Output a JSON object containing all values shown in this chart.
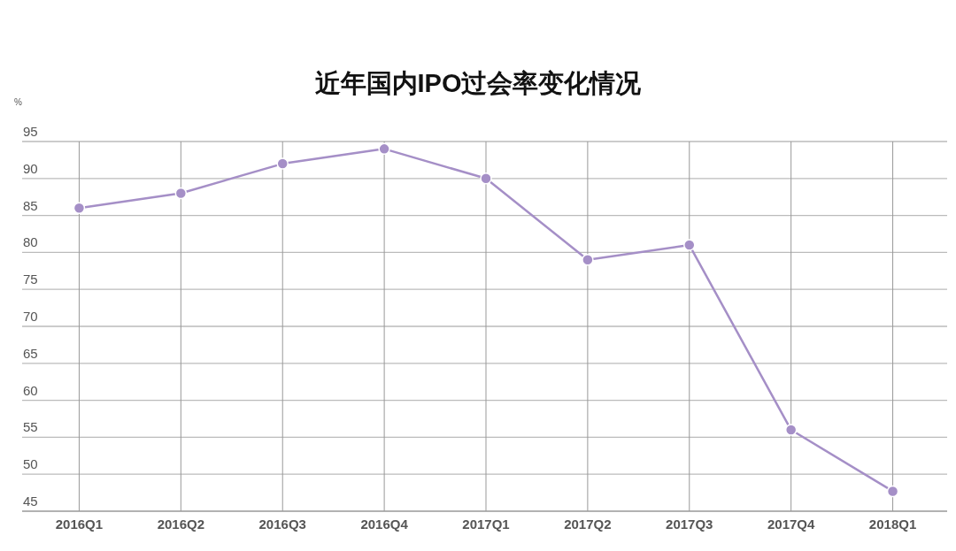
{
  "chart_data": {
    "type": "line",
    "title": "近年国内IPO过会率变化情况",
    "ylabel": "%",
    "categories": [
      "2016Q1",
      "2016Q2",
      "2016Q3",
      "2016Q4",
      "2017Q1",
      "2017Q2",
      "2017Q3",
      "2017Q4",
      "2018Q1"
    ],
    "series": [
      {
        "color": "#a58fc7",
        "values": [
          86,
          88,
          92,
          94,
          90,
          79,
          81,
          56,
          47.7
        ]
      }
    ],
    "ylim": [
      45,
      95
    ],
    "yticks": [
      45,
      50,
      55,
      60,
      65,
      70,
      75,
      80,
      85,
      90,
      95
    ],
    "grid": true,
    "marker": "circle",
    "line_style": "solid"
  }
}
